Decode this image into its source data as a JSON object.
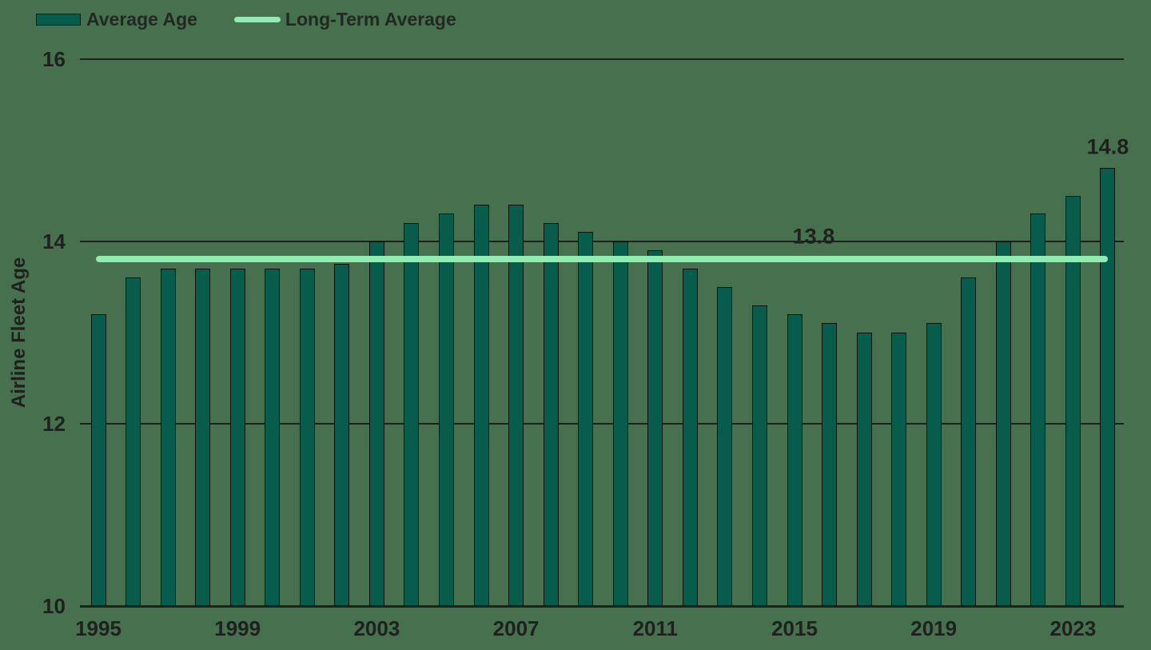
{
  "colors": {
    "background": "#47704E",
    "bar_fill": "#075C4C",
    "bar_outline": "#0D1511",
    "reference_line": "#8FEDB2",
    "grid_and_text": "#1E211E"
  },
  "legend": {
    "items": [
      {
        "label": "Average Age",
        "swatch": "bar-swatch",
        "color": "#075C4C"
      },
      {
        "label": "Long-Term Average",
        "swatch": "line-swatch",
        "color": "#8FEDB2"
      }
    ]
  },
  "chart_data": {
    "type": "bar",
    "title": "",
    "xlabel": "",
    "ylabel": "Airline Fleet Age",
    "ylim": [
      10,
      16
    ],
    "yticks": [
      10,
      12,
      14,
      16
    ],
    "xticks": [
      1995,
      1999,
      2003,
      2007,
      2011,
      2015,
      2019,
      2023
    ],
    "grid": "horizontal",
    "legend_position": "top-left",
    "categories": [
      1995,
      1996,
      1997,
      1998,
      1999,
      2000,
      2001,
      2002,
      2003,
      2004,
      2005,
      2006,
      2007,
      2008,
      2009,
      2010,
      2011,
      2012,
      2013,
      2014,
      2015,
      2016,
      2017,
      2018,
      2019,
      2020,
      2021,
      2022,
      2023,
      2024
    ],
    "series": [
      {
        "name": "Average Age",
        "type": "bar",
        "color": "#075C4C",
        "values": [
          13.2,
          13.6,
          13.7,
          13.7,
          13.7,
          13.7,
          13.7,
          13.75,
          14.0,
          14.2,
          14.3,
          14.4,
          14.4,
          14.2,
          14.1,
          14.0,
          13.9,
          13.7,
          13.5,
          13.3,
          13.2,
          13.1,
          13.0,
          13.0,
          13.1,
          13.6,
          14.0,
          14.3,
          14.5,
          14.8
        ]
      },
      {
        "name": "Long-Term Average",
        "type": "line",
        "color": "#8FEDB2",
        "value": 13.8
      }
    ],
    "annotations": [
      {
        "text": "13.8",
        "x_year": 2015.55,
        "y_value": 14.05,
        "refers_to": "long-term-average-line"
      },
      {
        "text": "14.8",
        "x_year": 2024,
        "y_value": 15.03,
        "refers_to": "bar-2024"
      }
    ]
  }
}
